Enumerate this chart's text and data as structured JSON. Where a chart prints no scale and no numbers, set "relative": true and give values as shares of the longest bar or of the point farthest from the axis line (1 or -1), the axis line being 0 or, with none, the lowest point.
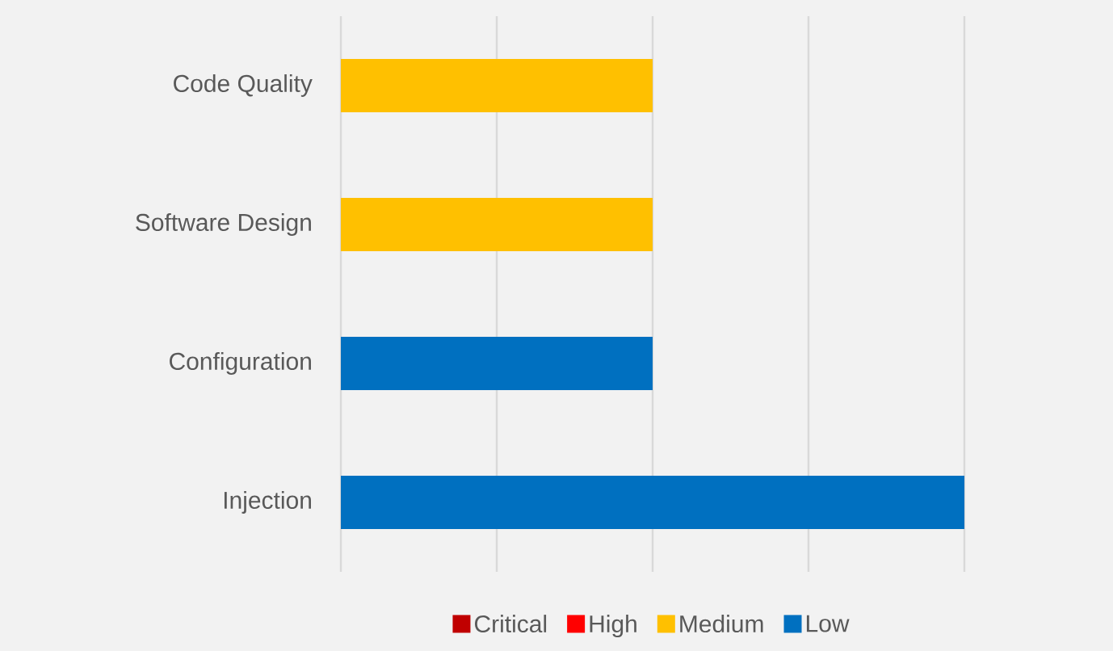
{
  "chart_data": {
    "type": "bar",
    "orientation": "horizontal",
    "stacked": true,
    "relative": true,
    "grid": "x",
    "legend": "bottom",
    "categories": [
      "Code Quality",
      "Software Design",
      "Configuration",
      "Injection"
    ],
    "series": [
      {
        "name": "Critical",
        "color": "#c00000",
        "values": [
          0,
          0,
          0,
          0
        ]
      },
      {
        "name": "High",
        "color": "#ff0000",
        "values": [
          0,
          0,
          0,
          0
        ]
      },
      {
        "name": "Medium",
        "color": "#ffc000",
        "values": [
          0.5,
          0.5,
          0,
          0
        ]
      },
      {
        "name": "Low",
        "color": "#0070c0",
        "values": [
          0,
          0,
          0.5,
          1
        ]
      }
    ]
  }
}
